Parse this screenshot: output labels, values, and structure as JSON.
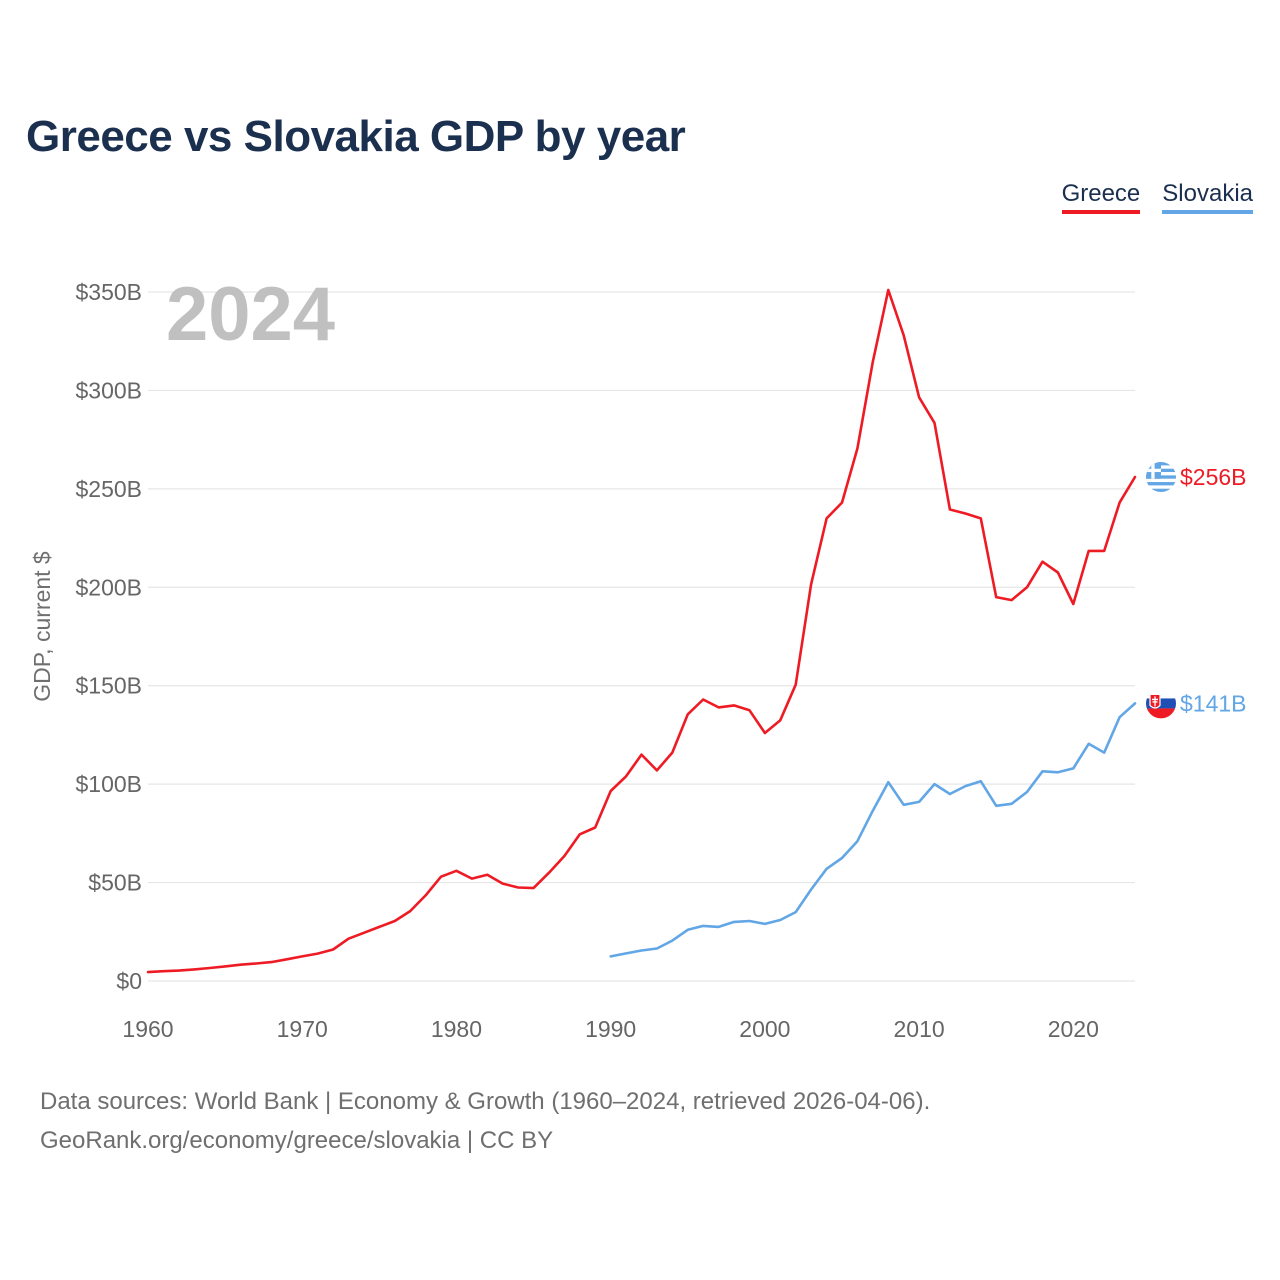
{
  "title": "Greece vs Slovakia GDP by year",
  "legend": {
    "greece": "Greece",
    "slovakia": "Slovakia"
  },
  "year_label": "2024",
  "footer": {
    "line1": "Data sources: World Bank | Economy & Growth (1960–2024, retrieved 2026-04-06).",
    "line2": "GeoRank.org/economy/greece/slovakia | CC BY"
  },
  "colors": {
    "greece": "#ee1b24",
    "slovakia": "#62a6e6",
    "title": "#1b2f4f",
    "grid": "#e6e6e6",
    "axis_text": "#666666",
    "year": "#c0c0c0"
  },
  "chart_data": {
    "type": "line",
    "title": "Greece vs Slovakia GDP by year",
    "xlabel": "",
    "ylabel": "GDP, current $",
    "xlim": [
      1960,
      2024
    ],
    "ylim": [
      0,
      350
    ],
    "unit": "billion USD",
    "x_ticks": [
      1960,
      1970,
      1980,
      1990,
      2000,
      2010,
      2020
    ],
    "x_tick_labels": [
      "1960",
      "1970",
      "1980",
      "1990",
      "2000",
      "2010",
      "2020"
    ],
    "y_ticks": [
      0,
      50,
      100,
      150,
      200,
      250,
      300,
      350
    ],
    "y_tick_labels": [
      "$0",
      "$50B",
      "$100B",
      "$150B",
      "$200B",
      "$250B",
      "$300B",
      "$350B"
    ],
    "series": [
      {
        "name": "Greece",
        "color": "#ee1b24",
        "end_label": "$256B",
        "x": [
          1960,
          1961,
          1962,
          1963,
          1964,
          1965,
          1966,
          1967,
          1968,
          1969,
          1970,
          1971,
          1972,
          1973,
          1974,
          1975,
          1976,
          1977,
          1978,
          1979,
          1980,
          1981,
          1982,
          1983,
          1984,
          1985,
          1986,
          1987,
          1988,
          1989,
          1990,
          1991,
          1992,
          1993,
          1994,
          1995,
          1996,
          1997,
          1998,
          1999,
          2000,
          2001,
          2002,
          2003,
          2004,
          2005,
          2006,
          2007,
          2008,
          2009,
          2010,
          2011,
          2012,
          2013,
          2014,
          2015,
          2016,
          2017,
          2018,
          2019,
          2020,
          2021,
          2022,
          2023,
          2024
        ],
        "values": [
          4.5,
          5.0,
          5.3,
          5.9,
          6.6,
          7.4,
          8.3,
          8.9,
          9.6,
          11.0,
          12.5,
          13.9,
          16.0,
          21.5,
          24.5,
          27.5,
          30.5,
          35.5,
          43.5,
          53.0,
          56.0,
          52.0,
          54.0,
          49.5,
          47.5,
          47.2,
          55.0,
          63.5,
          74.5,
          78.0,
          96.5,
          104.0,
          115.0,
          107.0,
          116.0,
          135.5,
          143.0,
          139.0,
          140.0,
          137.5,
          126.0,
          132.5,
          150.5,
          201.5,
          235.0,
          243.0,
          270.5,
          314.5,
          351.0,
          328.0,
          296.5,
          283.5,
          239.5,
          237.5,
          235.0,
          195.0,
          193.5,
          200.0,
          213.0,
          207.5,
          191.5,
          218.5,
          218.5,
          243.0,
          256.0
        ]
      },
      {
        "name": "Slovakia",
        "color": "#62a6e6",
        "end_label": "$141B",
        "x": [
          1990,
          1991,
          1992,
          1993,
          1994,
          1995,
          1996,
          1997,
          1998,
          1999,
          2000,
          2001,
          2002,
          2003,
          2004,
          2005,
          2006,
          2007,
          2008,
          2009,
          2010,
          2011,
          2012,
          2013,
          2014,
          2015,
          2016,
          2017,
          2018,
          2019,
          2020,
          2021,
          2022,
          2023,
          2024
        ],
        "values": [
          12.5,
          14.0,
          15.5,
          16.5,
          20.5,
          26.0,
          28.0,
          27.5,
          30.0,
          30.5,
          29.0,
          31.0,
          35.0,
          46.5,
          57.0,
          62.5,
          71.0,
          86.5,
          101.0,
          89.5,
          91.0,
          100.0,
          95.0,
          99.0,
          101.5,
          89.0,
          90.0,
          96.0,
          106.5,
          106.0,
          108.0,
          120.5,
          116.0,
          134.0,
          141.0
        ]
      }
    ]
  }
}
